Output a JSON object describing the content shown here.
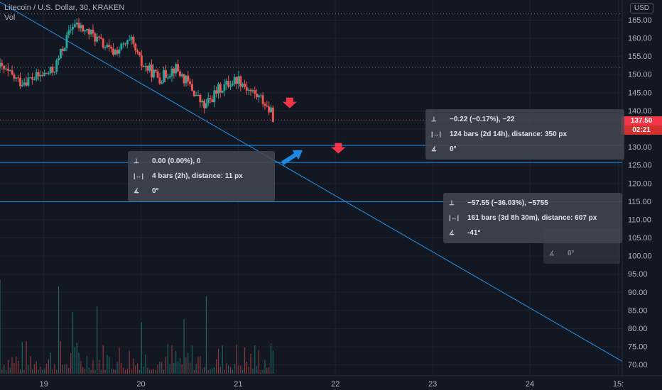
{
  "header": {
    "title": "Litecoin / U.S. Dollar, 30, KRAKEN",
    "volume_label": "Vol"
  },
  "currency_button": "USD",
  "price_badge": {
    "price": "137.50",
    "countdown": "02:21"
  },
  "colors": {
    "up": "#26a69a",
    "down": "#ef5350",
    "line": "#2196f3",
    "arrow_up": "#1e88e5",
    "arrow_down": "#f23645",
    "grid": "#1e222d",
    "axis_text": "#b2b5be"
  },
  "measure_tooltips": [
    {
      "price_change": "0.00 (0.00%), 0",
      "bars": "4 bars (2h), distance: 11 px",
      "angle": "0°"
    },
    {
      "price_change": "−0.22 (−0.17%), −22",
      "bars": "124 bars (2d 14h), distance: 350 px",
      "angle": "0°"
    },
    {
      "price_change": "−57.55 (−36.03%), −5755",
      "bars": "161 bars (3d 8h 30m), distance: 607 px",
      "angle": "-41°"
    },
    {
      "angle": "0°"
    }
  ],
  "chart_data": {
    "type": "candlestick",
    "symbol": "Litecoin / U.S. Dollar",
    "interval": "30",
    "exchange": "KRAKEN",
    "currency": "USD",
    "x_tick_labels": [
      "19",
      "20",
      "21",
      "22",
      "23",
      "24",
      "15:"
    ],
    "x_ticks_day": [
      19,
      20,
      21,
      22,
      23,
      24,
      24.91
    ],
    "x_range_day": [
      18.55,
      24.95
    ],
    "y_ticks": [
      70,
      75,
      80,
      85,
      90,
      95,
      100,
      105,
      110,
      115,
      120,
      125,
      130,
      135,
      140,
      145,
      150,
      155,
      160,
      165
    ],
    "y_range": [
      67,
      169
    ],
    "last_price": 137.5,
    "horizontal_lines": [
      130.5,
      125.8,
      115.0
    ],
    "dotted_levels": [
      166.8,
      152.0,
      137.5
    ],
    "trendline": {
      "start": {
        "day": 18.55,
        "price": 170.0
      },
      "end": {
        "day": 24.95,
        "price": 71.0
      }
    },
    "candle_keypoints": [
      [
        18.55,
        152
      ],
      [
        18.75,
        148
      ],
      [
        18.9,
        149
      ],
      [
        19.1,
        151
      ],
      [
        19.3,
        164
      ],
      [
        19.5,
        161
      ],
      [
        19.7,
        156
      ],
      [
        19.9,
        159
      ],
      [
        20.0,
        153
      ],
      [
        20.2,
        149
      ],
      [
        20.35,
        152
      ],
      [
        20.5,
        147
      ],
      [
        20.65,
        141
      ],
      [
        20.8,
        146
      ],
      [
        21.0,
        149
      ],
      [
        21.1,
        146
      ],
      [
        21.25,
        143
      ],
      [
        21.37,
        138
      ]
    ],
    "candle_step_day": 0.0208,
    "volume_spikes": [
      {
        "day": 18.55,
        "rel": 0.95
      },
      {
        "day": 19.15,
        "rel": 0.88
      },
      {
        "day": 19.3,
        "rel": 0.62
      },
      {
        "day": 19.55,
        "rel": 0.68
      },
      {
        "day": 20.0,
        "rel": 0.52
      },
      {
        "day": 20.45,
        "rel": 0.55
      },
      {
        "day": 20.67,
        "rel": 0.78
      },
      {
        "day": 21.37,
        "rel": 0.45
      }
    ],
    "arrows": [
      {
        "dir": "down",
        "day": 21.53,
        "price": 142.5
      },
      {
        "dir": "down",
        "day": 22.03,
        "price": 130.0
      },
      {
        "dir": "up",
        "day": 21.6,
        "price": 127.5
      }
    ]
  }
}
